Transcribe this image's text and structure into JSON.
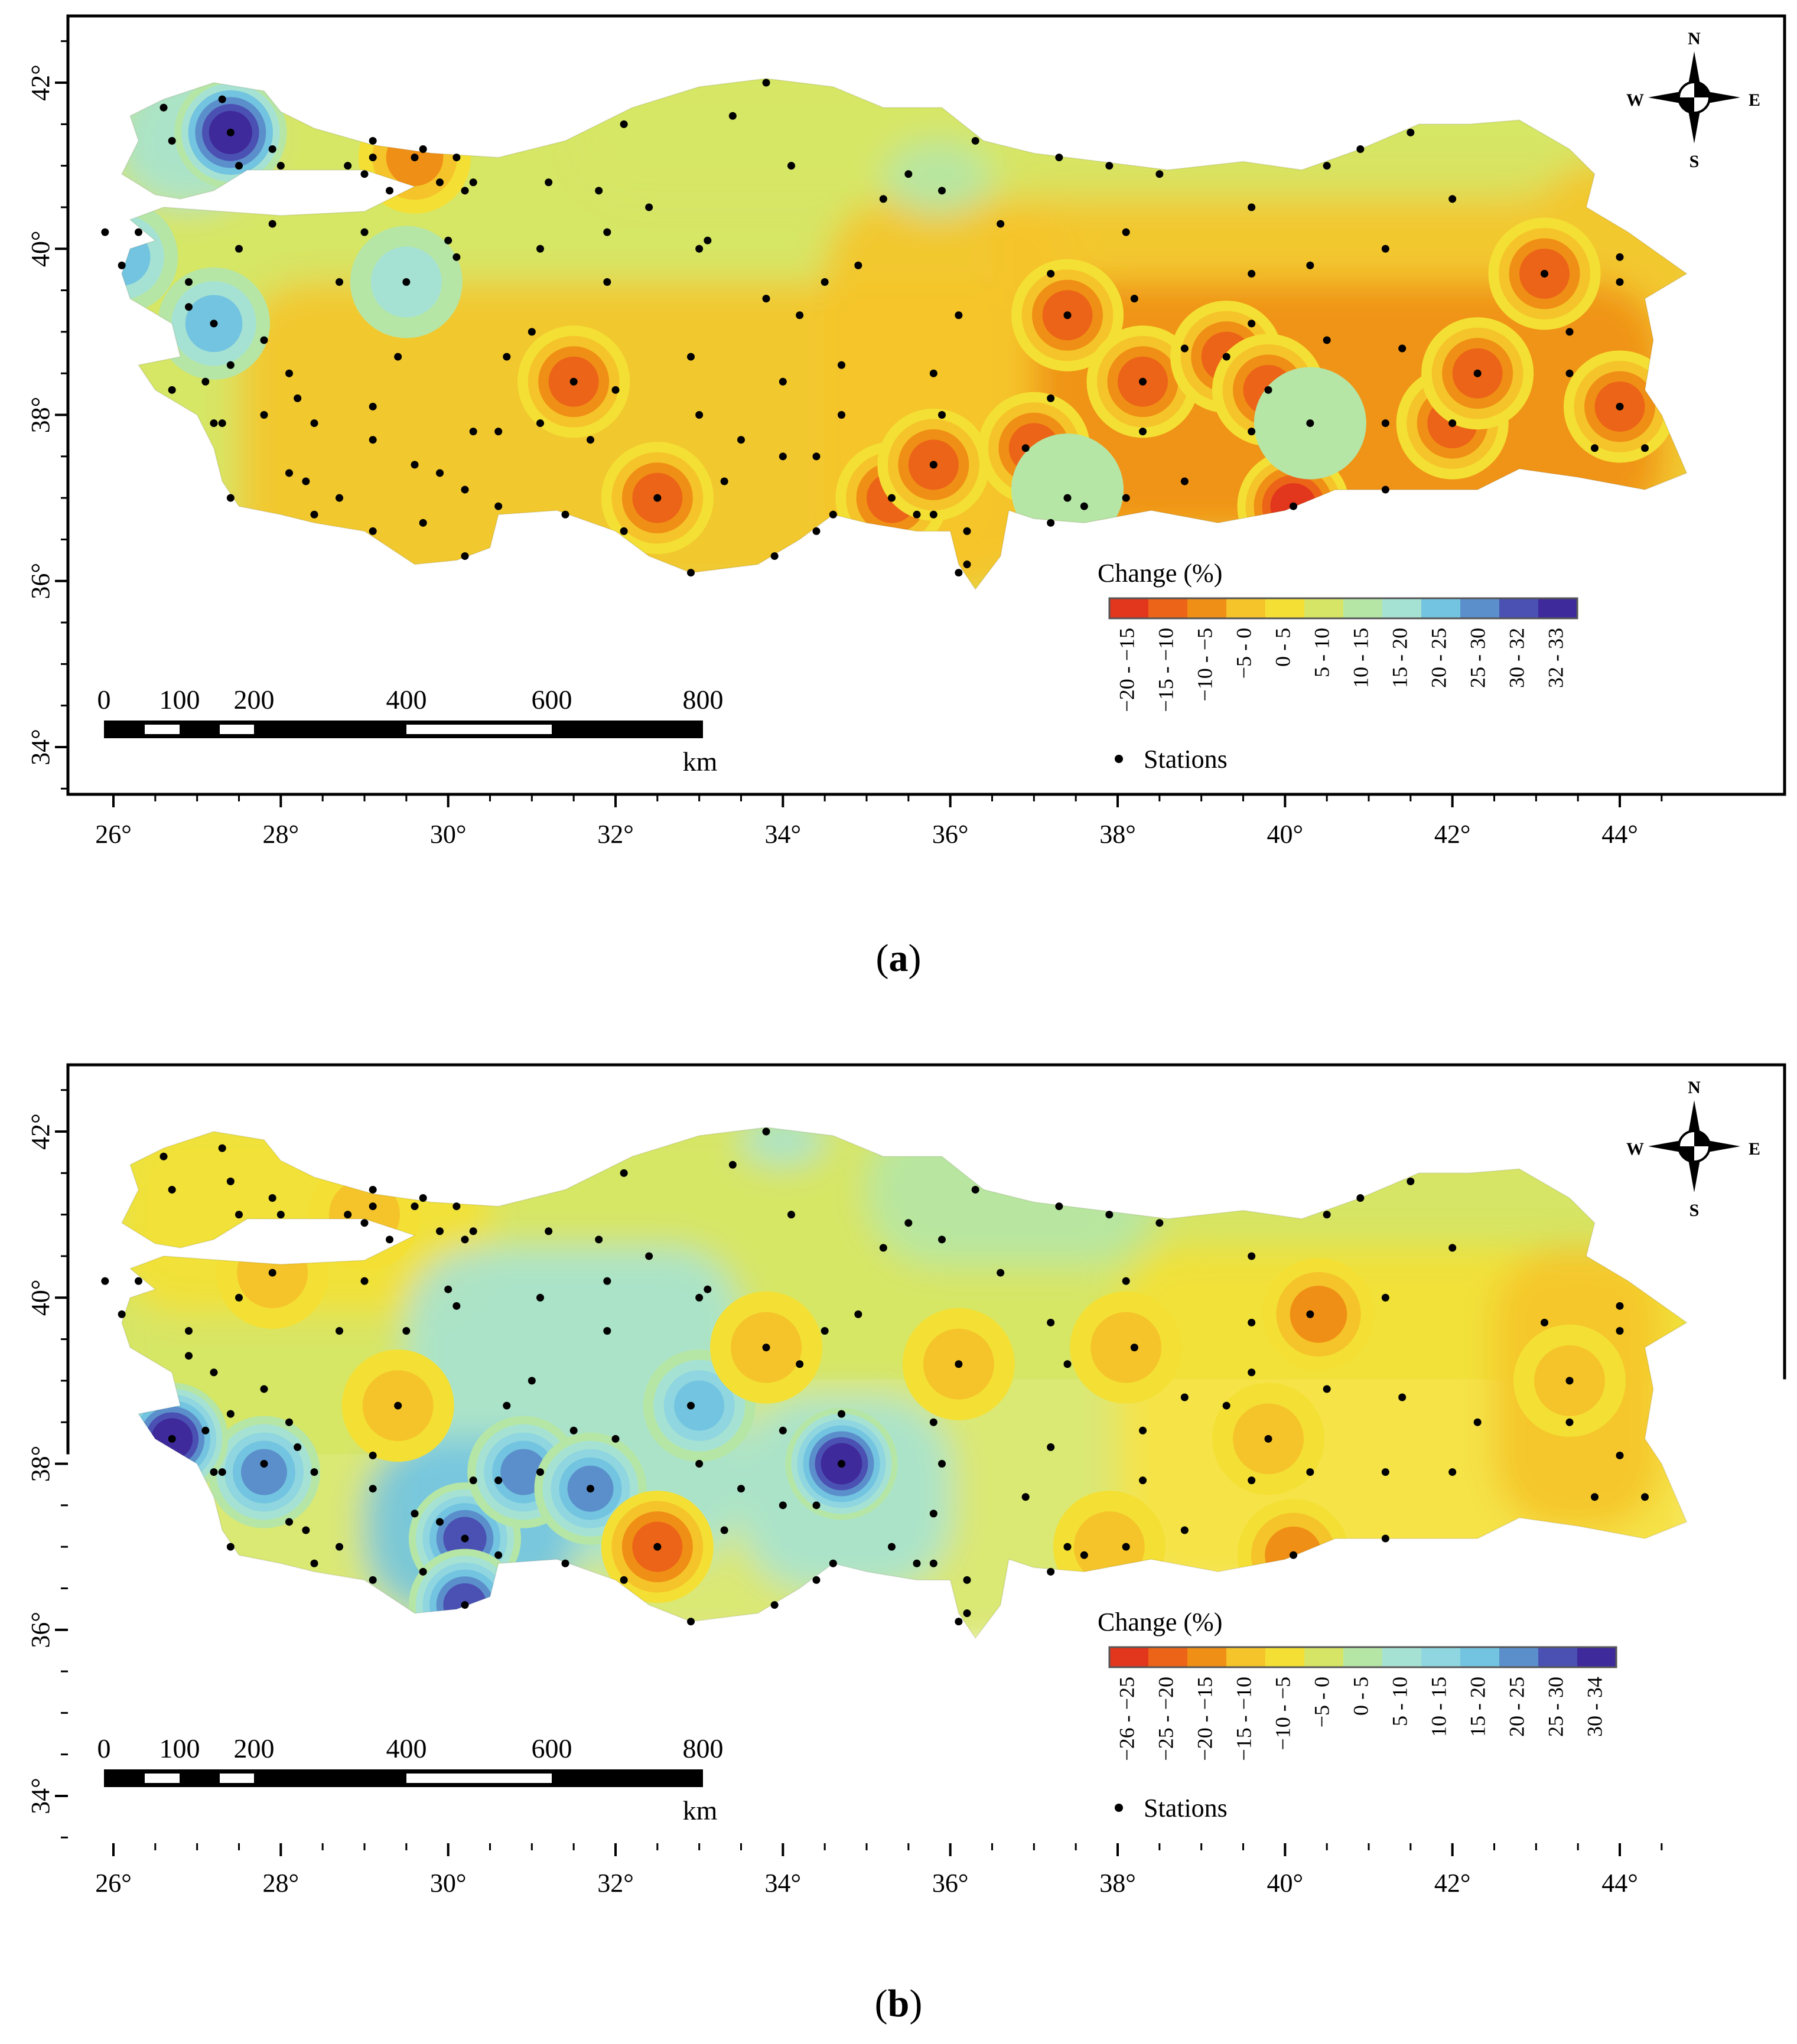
{
  "maps": [
    {
      "caption_letter": "a",
      "longitude_labels": [
        "26°",
        "28°",
        "30°",
        "32°",
        "34°",
        "36°",
        "38°",
        "40°",
        "42°",
        "44°"
      ],
      "latitude_labels": [
        "34°",
        "36°",
        "38°",
        "40°",
        "42°"
      ],
      "legend": {
        "title": "Change (%)",
        "classes": [
          {
            "label": "−20 - −15",
            "color": "#e2361d"
          },
          {
            "label": "−15 - −10",
            "color": "#ec6417"
          },
          {
            "label": "−10 - −5",
            "color": "#f08f15"
          },
          {
            "label": "−5 - 0",
            "color": "#f5c42a"
          },
          {
            "label": "0 - 5",
            "color": "#f4e034"
          },
          {
            "label": "5 - 10",
            "color": "#d6e565"
          },
          {
            "label": "10 - 15",
            "color": "#b5e6a6"
          },
          {
            "label": "15 - 20",
            "color": "#a6e2d3"
          },
          {
            "label": "20 - 25",
            "color": "#72c4e0"
          },
          {
            "label": "25 - 30",
            "color": "#5b8fcb"
          },
          {
            "label": "30 - 32",
            "color": "#4b51b3"
          },
          {
            "label": "32 - 33",
            "color": "#3f2a9c"
          }
        ],
        "stations_label": "Stations"
      },
      "scale_bar": {
        "labels": [
          "0",
          "100",
          "200",
          "400",
          "600",
          "800"
        ],
        "unit": "km"
      },
      "compass": {
        "n": "N",
        "s": "S",
        "e": "E",
        "w": "W"
      },
      "hotspots": [
        {
          "lon": 27.4,
          "lat": 41.4,
          "class": 11
        },
        {
          "lon": 29.5,
          "lat": 39.6,
          "class": 7
        },
        {
          "lon": 27.2,
          "lat": 39.1,
          "class": 8
        },
        {
          "lon": 26.1,
          "lat": 39.9,
          "class": 8
        },
        {
          "lon": 31.5,
          "lat": 38.4,
          "class": 1
        },
        {
          "lon": 32.5,
          "lat": 37.0,
          "class": 1
        },
        {
          "lon": 35.3,
          "lat": 37.0,
          "class": 1
        },
        {
          "lon": 35.8,
          "lat": 37.4,
          "class": 1
        },
        {
          "lon": 37.0,
          "lat": 37.6,
          "class": 1
        },
        {
          "lon": 37.4,
          "lat": 39.2,
          "class": 1
        },
        {
          "lon": 38.3,
          "lat": 38.4,
          "class": 1
        },
        {
          "lon": 39.3,
          "lat": 38.7,
          "class": 1
        },
        {
          "lon": 39.8,
          "lat": 38.3,
          "class": 1
        },
        {
          "lon": 40.1,
          "lat": 36.9,
          "class": 0
        },
        {
          "lon": 42.0,
          "lat": 37.9,
          "class": 1
        },
        {
          "lon": 42.3,
          "lat": 38.5,
          "class": 1
        },
        {
          "lon": 43.1,
          "lat": 39.7,
          "class": 1
        },
        {
          "lon": 44.0,
          "lat": 38.1,
          "class": 1
        },
        {
          "lon": 29.6,
          "lat": 41.1,
          "class": 2
        },
        {
          "lon": 37.4,
          "lat": 37.1,
          "class": 6
        },
        {
          "lon": 40.3,
          "lat": 37.9,
          "class": 6
        }
      ]
    },
    {
      "caption_letter": "b",
      "longitude_labels": [
        "26°",
        "28°",
        "30°",
        "32°",
        "34°",
        "36°",
        "38°",
        "40°",
        "42°",
        "44°"
      ],
      "latitude_labels": [
        "34°",
        "36°",
        "38°",
        "40°",
        "42°"
      ],
      "legend": {
        "title": "Change (%)",
        "classes": [
          {
            "label": "−26 - −25",
            "color": "#e2361d"
          },
          {
            "label": "−25 - −20",
            "color": "#ec6417"
          },
          {
            "label": "−20 - −15",
            "color": "#f08f15"
          },
          {
            "label": "−15 - −10",
            "color": "#f5c42a"
          },
          {
            "label": "−10 - −5",
            "color": "#f4e034"
          },
          {
            "label": "−5 - 0",
            "color": "#d6e565"
          },
          {
            "label": "0 - 5",
            "color": "#b5e6a6"
          },
          {
            "label": "5 - 10",
            "color": "#a6e2d3"
          },
          {
            "label": "10 - 15",
            "color": "#8fd6e0"
          },
          {
            "label": "15 - 20",
            "color": "#72c4e0"
          },
          {
            "label": "20 - 25",
            "color": "#5b8fcb"
          },
          {
            "label": "25 - 30",
            "color": "#4b51b3"
          },
          {
            "label": "30 - 34",
            "color": "#3f2a9c"
          }
        ],
        "stations_label": "Stations"
      },
      "scale_bar": {
        "labels": [
          "0",
          "100",
          "200",
          "400",
          "600",
          "800"
        ],
        "unit": "km"
      },
      "compass": {
        "n": "N",
        "s": "S",
        "e": "E",
        "w": "W"
      },
      "hotspots": [
        {
          "lon": 34.7,
          "lat": 38.0,
          "class": 12
        },
        {
          "lon": 30.2,
          "lat": 37.1,
          "class": 11
        },
        {
          "lon": 30.2,
          "lat": 36.3,
          "class": 11
        },
        {
          "lon": 30.9,
          "lat": 37.9,
          "class": 10
        },
        {
          "lon": 31.7,
          "lat": 37.7,
          "class": 10
        },
        {
          "lon": 27.8,
          "lat": 37.9,
          "class": 10
        },
        {
          "lon": 33.0,
          "lat": 38.7,
          "class": 9
        },
        {
          "lon": 26.7,
          "lat": 38.3,
          "class": 12
        },
        {
          "lon": 32.5,
          "lat": 37.0,
          "class": 1
        },
        {
          "lon": 36.1,
          "lat": 39.2,
          "class": 3
        },
        {
          "lon": 40.4,
          "lat": 39.8,
          "class": 2
        },
        {
          "lon": 40.1,
          "lat": 36.9,
          "class": 2
        },
        {
          "lon": 43.4,
          "lat": 39.0,
          "class": 3
        },
        {
          "lon": 39.8,
          "lat": 38.3,
          "class": 3
        },
        {
          "lon": 38.1,
          "lat": 39.4,
          "class": 3
        },
        {
          "lon": 37.9,
          "lat": 37.0,
          "class": 3
        },
        {
          "lon": 29.4,
          "lat": 38.7,
          "class": 3
        },
        {
          "lon": 27.9,
          "lat": 40.3,
          "class": 3
        },
        {
          "lon": 29.0,
          "lat": 41.0,
          "class": 3
        },
        {
          "lon": 33.8,
          "lat": 39.4,
          "class": 3
        }
      ]
    }
  ],
  "stations": [
    [
      26.6,
      41.7
    ],
    [
      27.3,
      41.8
    ],
    [
      27.4,
      41.4
    ],
    [
      27.5,
      41.0
    ],
    [
      27.9,
      41.2
    ],
    [
      26.7,
      41.3
    ],
    [
      29.1,
      41.3
    ],
    [
      29.1,
      41.1
    ],
    [
      29.7,
      41.2
    ],
    [
      28.8,
      41.0
    ],
    [
      29.0,
      40.9
    ],
    [
      29.3,
      40.7
    ],
    [
      29.9,
      40.8
    ],
    [
      30.3,
      40.8
    ],
    [
      31.2,
      40.8
    ],
    [
      31.8,
      40.7
    ],
    [
      32.1,
      41.5
    ],
    [
      33.4,
      41.6
    ],
    [
      33.8,
      42.0
    ],
    [
      34.1,
      41.0
    ],
    [
      35.2,
      40.6
    ],
    [
      35.5,
      40.9
    ],
    [
      35.9,
      40.7
    ],
    [
      36.3,
      41.3
    ],
    [
      37.3,
      41.1
    ],
    [
      37.9,
      41.0
    ],
    [
      38.5,
      40.9
    ],
    [
      39.6,
      40.5
    ],
    [
      40.5,
      41.0
    ],
    [
      40.9,
      41.2
    ],
    [
      41.5,
      41.4
    ],
    [
      42.0,
      40.6
    ],
    [
      43.1,
      39.7
    ],
    [
      44.0,
      39.9
    ],
    [
      44.0,
      39.6
    ],
    [
      43.4,
      39.0
    ],
    [
      43.4,
      38.5
    ],
    [
      44.0,
      38.1
    ],
    [
      44.3,
      37.6
    ],
    [
      43.7,
      37.6
    ],
    [
      41.2,
      37.1
    ],
    [
      40.1,
      36.9
    ],
    [
      38.8,
      37.2
    ],
    [
      38.1,
      37.0
    ],
    [
      37.4,
      37.0
    ],
    [
      36.9,
      37.6
    ],
    [
      37.2,
      38.2
    ],
    [
      38.3,
      38.4
    ],
    [
      38.3,
      37.8
    ],
    [
      39.3,
      38.7
    ],
    [
      39.8,
      38.3
    ],
    [
      39.6,
      37.8
    ],
    [
      40.3,
      37.9
    ],
    [
      41.2,
      37.9
    ],
    [
      42.0,
      37.9
    ],
    [
      42.3,
      38.5
    ],
    [
      41.4,
      38.8
    ],
    [
      40.5,
      38.9
    ],
    [
      39.6,
      39.1
    ],
    [
      38.8,
      38.8
    ],
    [
      37.4,
      39.2
    ],
    [
      38.2,
      39.4
    ],
    [
      38.1,
      40.2
    ],
    [
      39.6,
      39.7
    ],
    [
      40.3,
      39.8
    ],
    [
      41.2,
      40.0
    ],
    [
      36.1,
      39.2
    ],
    [
      35.8,
      38.5
    ],
    [
      35.9,
      38.0
    ],
    [
      35.8,
      37.4
    ],
    [
      35.3,
      37.0
    ],
    [
      35.8,
      36.8
    ],
    [
      36.2,
      36.6
    ],
    [
      36.1,
      36.1
    ],
    [
      36.2,
      36.2
    ],
    [
      35.6,
      36.8
    ],
    [
      34.6,
      36.8
    ],
    [
      34.4,
      36.6
    ],
    [
      33.9,
      36.3
    ],
    [
      32.9,
      36.1
    ],
    [
      32.1,
      36.6
    ],
    [
      31.4,
      36.8
    ],
    [
      30.6,
      36.9
    ],
    [
      30.2,
      36.3
    ],
    [
      29.7,
      36.7
    ],
    [
      29.1,
      36.6
    ],
    [
      28.4,
      36.8
    ],
    [
      28.7,
      37.0
    ],
    [
      28.3,
      37.2
    ],
    [
      28.1,
      37.3
    ],
    [
      27.4,
      37.0
    ],
    [
      27.2,
      37.9
    ],
    [
      27.3,
      37.9
    ],
    [
      27.8,
      38.0
    ],
    [
      28.4,
      37.9
    ],
    [
      28.2,
      38.2
    ],
    [
      28.1,
      38.5
    ],
    [
      27.8,
      38.9
    ],
    [
      27.4,
      38.6
    ],
    [
      26.7,
      38.3
    ],
    [
      27.1,
      38.4
    ],
    [
      27.2,
      39.1
    ],
    [
      26.9,
      39.3
    ],
    [
      26.9,
      39.6
    ],
    [
      26.3,
      40.2
    ],
    [
      26.1,
      39.8
    ],
    [
      25.9,
      40.2
    ],
    [
      27.5,
      40.0
    ],
    [
      27.9,
      40.3
    ],
    [
      28.7,
      39.6
    ],
    [
      29.0,
      40.2
    ],
    [
      29.5,
      39.6
    ],
    [
      30.0,
      40.1
    ],
    [
      30.1,
      39.9
    ],
    [
      31.1,
      40.0
    ],
    [
      30.7,
      38.7
    ],
    [
      31.0,
      39.0
    ],
    [
      29.4,
      38.7
    ],
    [
      29.1,
      38.1
    ],
    [
      29.1,
      37.7
    ],
    [
      29.6,
      37.4
    ],
    [
      29.9,
      37.3
    ],
    [
      30.2,
      37.1
    ],
    [
      30.3,
      37.8
    ],
    [
      30.6,
      37.8
    ],
    [
      31.1,
      37.9
    ],
    [
      31.5,
      38.4
    ],
    [
      31.7,
      37.7
    ],
    [
      32.0,
      38.3
    ],
    [
      32.9,
      38.7
    ],
    [
      32.5,
      37.0
    ],
    [
      33.3,
      37.2
    ],
    [
      33.0,
      38.0
    ],
    [
      33.5,
      37.7
    ],
    [
      34.0,
      37.5
    ],
    [
      34.4,
      37.5
    ],
    [
      34.7,
      38.0
    ],
    [
      34.7,
      38.6
    ],
    [
      34.0,
      38.4
    ],
    [
      34.2,
      39.2
    ],
    [
      33.8,
      39.4
    ],
    [
      34.5,
      39.6
    ],
    [
      34.9,
      39.8
    ],
    [
      33.0,
      40.0
    ],
    [
      33.1,
      40.1
    ],
    [
      32.4,
      40.5
    ],
    [
      31.9,
      39.6
    ],
    [
      31.9,
      40.2
    ],
    [
      36.6,
      40.3
    ],
    [
      37.2,
      39.7
    ],
    [
      37.2,
      36.7
    ],
    [
      37.6,
      36.9
    ],
    [
      30.1,
      41.1
    ],
    [
      30.2,
      40.7
    ],
    [
      29.6,
      41.1
    ],
    [
      28.0,
      41.0
    ]
  ]
}
